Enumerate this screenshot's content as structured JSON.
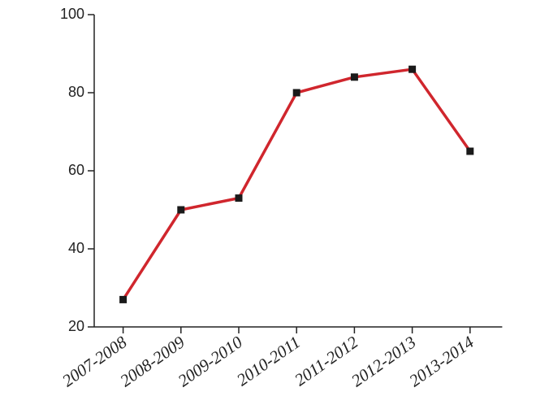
{
  "chart_data": {
    "type": "line",
    "categories": [
      "2007-2008",
      "2008-2009",
      "2009-2010",
      "2010-2011",
      "2011-2012",
      "2012-2013",
      "2013-2014"
    ],
    "series": [
      {
        "values": [
          27,
          50,
          53,
          80,
          84,
          86,
          65
        ],
        "color": "#d0262d",
        "marker_color": "#1a1a1a"
      }
    ],
    "ylim": [
      20,
      100
    ],
    "yticks": [
      20,
      40,
      60,
      80,
      100
    ],
    "grid": false
  }
}
